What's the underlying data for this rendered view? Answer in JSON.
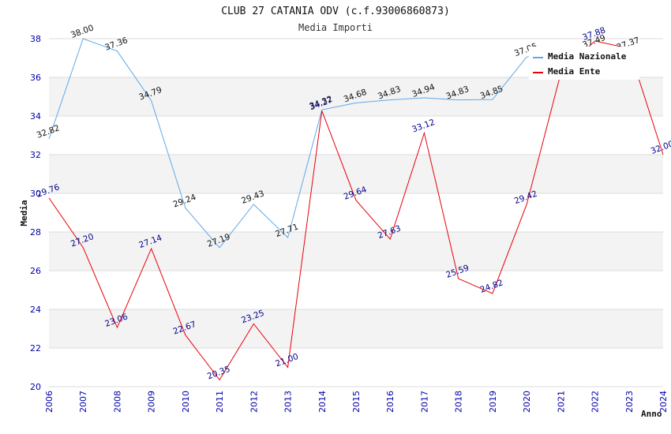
{
  "chart_data": {
    "type": "line",
    "title": "CLUB 27 CATANIA ODV (c.f.93006860873)",
    "subtitle": "Media Importi",
    "ylabel": "Media",
    "xlabel": "Anno",
    "ylim": [
      20,
      38
    ],
    "yticks": [
      20,
      22,
      24,
      26,
      28,
      30,
      32,
      34,
      36,
      38
    ],
    "x": [
      "2006",
      "2007",
      "2008",
      "2009",
      "2010",
      "2011",
      "2012",
      "2013",
      "2014",
      "2015",
      "2016",
      "2017",
      "2018",
      "2019",
      "2020",
      "2021",
      "2022",
      "2023",
      "2024"
    ],
    "legend_position": "top-right",
    "grid": "alternating horizontal bands",
    "series": [
      {
        "name": "Media Nazionale",
        "color": "#5fa8e8",
        "values": [
          32.82,
          38.0,
          37.36,
          34.79,
          29.24,
          27.19,
          29.43,
          27.71,
          34.32,
          34.68,
          34.83,
          34.94,
          34.83,
          34.85,
          37.05,
          37.4,
          37.49,
          37.37,
          null
        ],
        "labels": [
          "32.82",
          "38.00",
          "37.36",
          "34.79",
          "29.24",
          "27.19",
          "29.43",
          "27.71",
          "34.32",
          "34.68",
          "34.83",
          "34.94",
          "34.83",
          "34.85",
          "37.05",
          "",
          "37.49",
          "37.37",
          ""
        ]
      },
      {
        "name": "Media Ente",
        "color": "#e8000b",
        "values": [
          29.76,
          27.2,
          23.06,
          27.14,
          22.67,
          20.35,
          23.25,
          21.0,
          34.27,
          29.64,
          27.63,
          33.12,
          25.59,
          24.82,
          29.42,
          36.2,
          37.88,
          37.5,
          32.0
        ],
        "labels": [
          "29.76",
          "27.20",
          "23.06",
          "27.14",
          "22.67",
          "20.35",
          "23.25",
          "21.00",
          "34.27",
          "29.64",
          "27.63",
          "33.12",
          "25.59",
          "24.82",
          "29.42",
          "",
          "37.88",
          "",
          "32.00"
        ]
      }
    ]
  }
}
